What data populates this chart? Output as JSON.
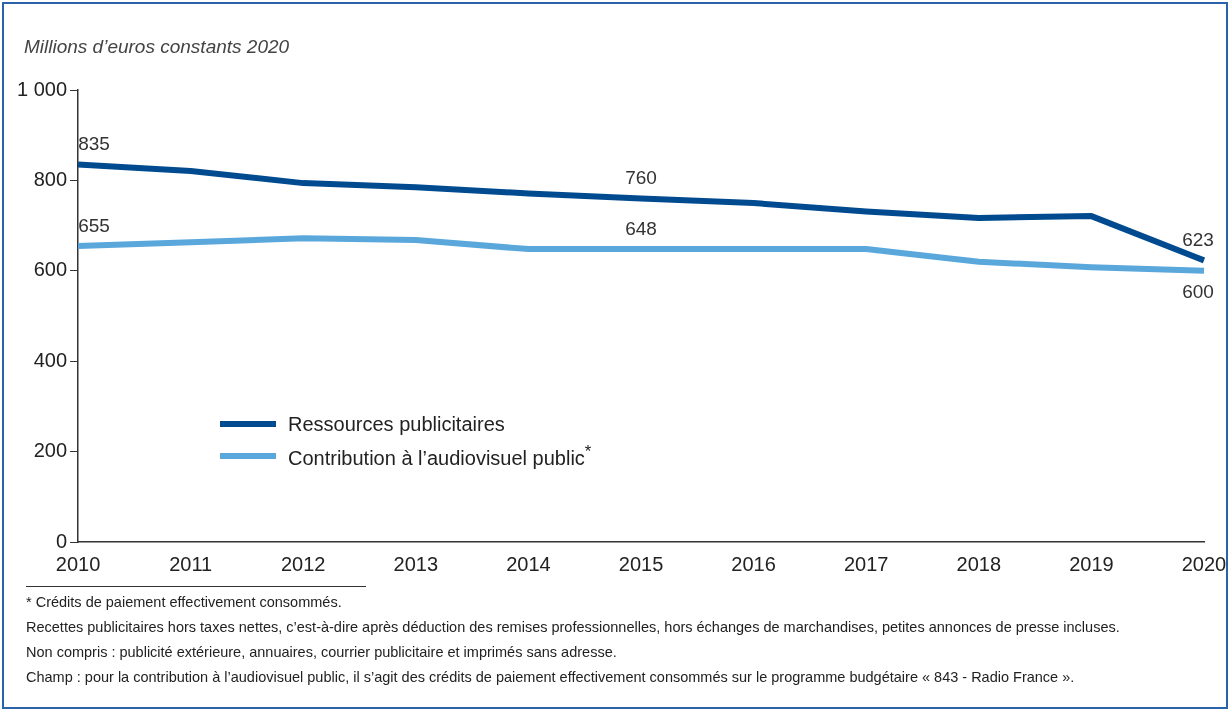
{
  "chart_data": {
    "type": "line",
    "ylabel": "Millions d’euros constants 2020",
    "categories": [
      "2010",
      "2011",
      "2012",
      "2013",
      "2014",
      "2015",
      "2016",
      "2017",
      "2018",
      "2019",
      "2020"
    ],
    "series": [
      {
        "name": "Ressources publicitaires",
        "color": "#004a8f",
        "values": [
          835,
          821,
          794,
          785,
          771,
          760,
          750,
          731,
          717,
          721,
          623
        ],
        "value_labels": [
          "835",
          null,
          null,
          null,
          null,
          "760",
          null,
          null,
          null,
          null,
          "623"
        ]
      },
      {
        "name": "Contribution à l’audiovisuel public$^{*}$",
        "color": "#5aa7dc",
        "values": [
          655,
          663,
          672,
          668,
          648,
          648,
          648,
          648,
          620,
          608,
          600
        ],
        "value_labels": [
          "655",
          null,
          null,
          null,
          null,
          "648",
          null,
          null,
          null,
          null,
          "600"
        ]
      }
    ],
    "ylim": [
      0,
      1000
    ],
    "yticks": [
      0,
      200,
      400,
      600,
      800,
      {
        "value": 1000,
        "label": "1 000"
      }
    ],
    "grid": false,
    "legend": "bottom left",
    "marker": "none",
    "line_style": "solid",
    "annotations": [
      "* Crédits de paiement effectivement consommés.",
      "Recettes publicitaires hors taxes nettes, c’est-à-dire après déduction des remises professionnelles, hors échanges de marchandises, petites annonces de presse incluses.",
      "Non compris : publicité extérieure, annuaires, courrier publicitaire et imprimés sans adresse.",
      "Champ : pour la contribution à l’audiovisuel public, il s’agit des crédits de paiement effectivement consommés sur le programme budgétaire « 843 - Radio France »."
    ]
  }
}
